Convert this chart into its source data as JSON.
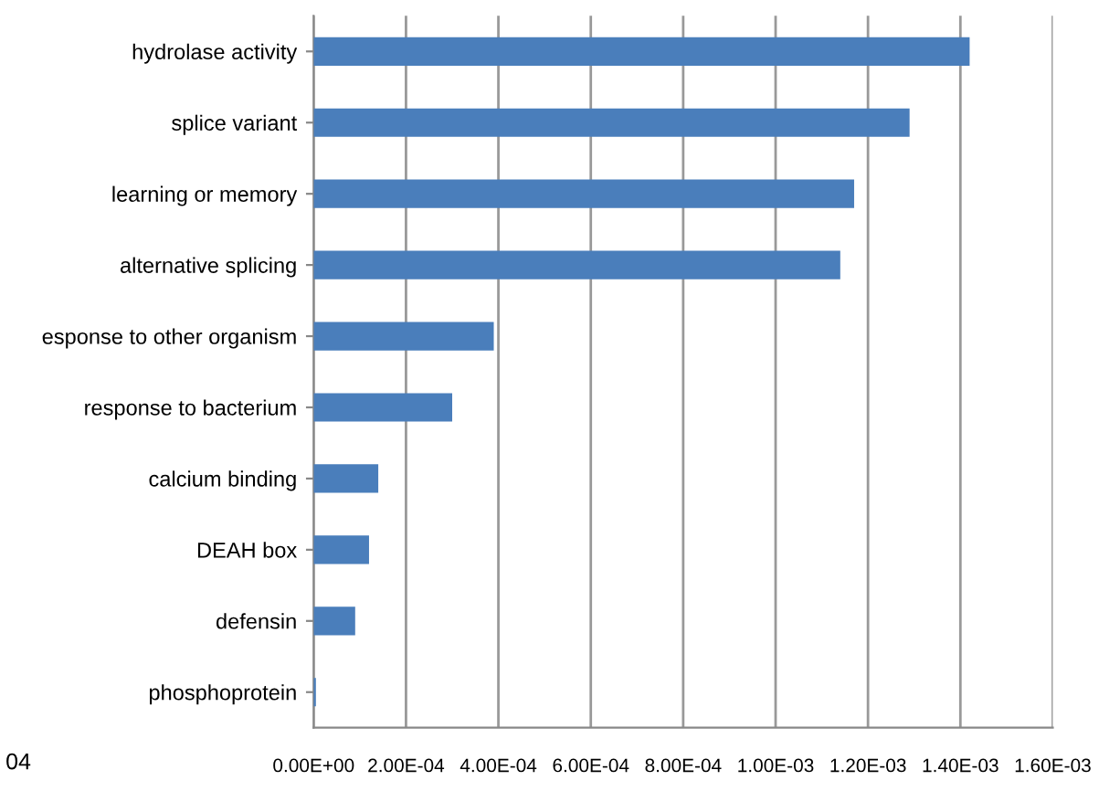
{
  "chart_data": {
    "type": "bar",
    "orientation": "horizontal",
    "categories": [
      "hydrolase activity",
      "splice variant",
      "learning or memory",
      "alternative splicing",
      "esponse to other organism",
      "response to bacterium",
      "calcium binding",
      "DEAH box",
      "defensin",
      "phosphoprotein"
    ],
    "values": [
      0.00142,
      0.00129,
      0.00117,
      0.00114,
      0.00039,
      0.0003,
      0.00014,
      0.00012,
      9e-05,
      5e-06
    ],
    "color": "#4a7ebb",
    "xlim": [
      0,
      0.0016
    ],
    "xticks": [
      {
        "value": 0,
        "label": "0.00E+00"
      },
      {
        "value": 0.0002,
        "label": "2.00E-04"
      },
      {
        "value": 0.0004,
        "label": "4.00E-04"
      },
      {
        "value": 0.0006,
        "label": "6.00E-04"
      },
      {
        "value": 0.0008,
        "label": "8.00E-04"
      },
      {
        "value": 0.001,
        "label": "1.00E-03"
      },
      {
        "value": 0.0012,
        "label": "1.20E-03"
      },
      {
        "value": 0.0014,
        "label": "1.40E-03"
      },
      {
        "value": 0.0016,
        "label": "1.60E-03"
      }
    ],
    "grid": "x",
    "annotations": [
      "04"
    ]
  }
}
